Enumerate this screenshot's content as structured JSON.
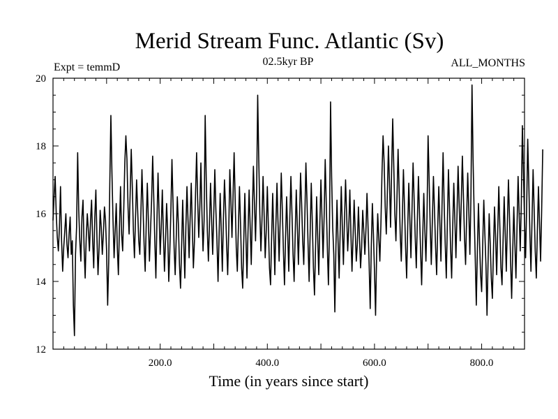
{
  "chart_data": {
    "type": "line",
    "title": "Merid Stream Func. Atlantic (Sv)",
    "subtitle_left": "Expt = temmD",
    "subtitle_center": "02.5kyr BP",
    "subtitle_right": "ALL_MONTHS",
    "xlabel": "Time (in years since start)",
    "ylabel": "",
    "xlim": [
      0,
      880
    ],
    "ylim": [
      12,
      20
    ],
    "x_ticks": [
      200,
      400,
      600,
      800
    ],
    "x_tick_labels": [
      "200.0",
      "400.0",
      "600.0",
      "800.0"
    ],
    "y_ticks": [
      12,
      14,
      16,
      18,
      20
    ],
    "y_tick_labels": [
      "12",
      "14",
      "16",
      "18",
      "20"
    ],
    "grid": false,
    "line_color": "#000000",
    "series": [
      {
        "x_start": 0,
        "x_step": 2,
        "values": [
          15.8,
          16.5,
          17.1,
          16.0,
          15.3,
          14.9,
          15.6,
          16.8,
          15.2,
          14.3,
          15.0,
          15.5,
          16.0,
          15.1,
          14.7,
          15.4,
          15.9,
          14.8,
          15.2,
          13.3,
          12.4,
          14.8,
          15.6,
          17.8,
          16.1,
          15.2,
          14.6,
          15.9,
          16.4,
          15.0,
          14.1,
          15.3,
          16.0,
          15.5,
          14.9,
          15.8,
          16.4,
          15.2,
          14.4,
          15.9,
          16.7,
          15.3,
          14.2,
          15.0,
          16.1,
          15.6,
          14.8,
          15.4,
          16.2,
          15.8,
          14.9,
          13.3,
          14.6,
          16.9,
          18.9,
          17.2,
          15.8,
          14.7,
          15.5,
          16.3,
          15.0,
          14.2,
          15.6,
          16.8,
          15.4,
          14.9,
          16.1,
          17.5,
          18.3,
          17.6,
          16.2,
          15.4,
          16.6,
          17.9,
          16.8,
          15.5,
          14.7,
          15.9,
          17.0,
          16.1,
          15.2,
          14.8,
          16.0,
          17.3,
          16.2,
          15.1,
          14.3,
          15.7,
          16.9,
          15.8,
          14.6,
          15.5,
          16.4,
          17.7,
          16.5,
          15.2,
          14.1,
          15.8,
          17.2,
          16.0,
          14.8,
          15.6,
          16.7,
          15.4,
          14.3,
          15.2,
          16.3,
          15.5,
          14.0,
          14.9,
          16.1,
          17.6,
          16.3,
          15.0,
          14.2,
          15.3,
          16.5,
          15.7,
          14.5,
          13.8,
          15.0,
          16.4,
          15.2,
          14.1,
          15.6,
          16.8,
          15.8,
          14.7,
          15.9,
          16.9,
          15.6,
          14.4,
          15.2,
          16.6,
          17.8,
          16.4,
          15.3,
          16.2,
          17.5,
          16.0,
          14.9,
          15.8,
          18.9,
          17.0,
          15.5,
          14.6,
          15.7,
          16.9,
          15.8,
          14.8,
          16.0,
          17.3,
          16.1,
          15.2,
          14.0,
          15.4,
          16.6,
          15.5,
          14.3,
          15.8,
          17.0,
          16.2,
          15.1,
          14.2,
          15.5,
          17.3,
          16.4,
          15.3,
          16.5,
          17.8,
          16.4,
          15.0,
          14.3,
          15.6,
          16.8,
          15.7,
          14.4,
          13.8,
          15.2,
          16.6,
          15.3,
          14.1,
          15.5,
          16.7,
          15.6,
          14.5,
          16.0,
          17.4,
          16.3,
          15.2,
          16.6,
          19.5,
          17.6,
          16.0,
          14.9,
          15.8,
          17.1,
          16.0,
          14.7,
          15.5,
          16.8,
          15.6,
          14.4,
          13.9,
          15.3,
          16.6,
          15.4,
          14.2,
          15.7,
          16.9,
          15.7,
          14.6,
          15.8,
          17.2,
          16.1,
          14.9,
          13.9,
          15.3,
          16.5,
          15.4,
          14.3,
          15.9,
          17.1,
          16.0,
          14.8,
          14.0,
          15.4,
          16.7,
          15.6,
          14.5,
          15.8,
          17.2,
          16.3,
          15.2,
          14.5,
          15.9,
          17.5,
          16.4,
          15.1,
          14.0,
          15.5,
          16.9,
          15.7,
          14.4,
          13.6,
          15.0,
          16.5,
          15.3,
          14.2,
          15.7,
          17.0,
          15.9,
          14.7,
          15.9,
          17.6,
          16.3,
          15.0,
          13.9,
          15.6,
          19.3,
          17.1,
          15.6,
          14.8,
          13.1,
          15.0,
          16.4,
          15.2,
          14.1,
          15.5,
          16.8,
          15.6,
          14.5,
          15.8,
          17.0,
          16.0,
          14.9,
          15.6,
          16.7,
          15.4,
          14.3,
          15.3,
          16.4,
          15.5,
          14.6,
          15.1,
          16.2,
          15.3,
          14.4,
          15.0,
          16.1,
          15.5,
          14.8,
          15.5,
          16.6,
          15.6,
          14.5,
          13.2,
          15.0,
          16.3,
          15.4,
          14.3,
          13.0,
          14.8,
          16.0,
          15.3,
          14.6,
          15.7,
          17.2,
          18.3,
          17.5,
          16.2,
          15.4,
          16.6,
          18.0,
          16.9,
          15.6,
          17.3,
          18.8,
          17.4,
          16.0,
          15.2,
          16.5,
          17.9,
          16.7,
          15.4,
          14.6,
          15.9,
          17.3,
          16.2,
          15.0,
          14.1,
          15.6,
          16.9,
          15.8,
          14.7,
          16.1,
          17.5,
          16.4,
          15.3,
          14.4,
          15.8,
          17.1,
          16.0,
          14.9,
          13.9,
          15.3,
          16.6,
          15.5,
          14.6,
          15.9,
          18.3,
          17.0,
          15.6,
          14.5,
          15.8,
          17.1,
          16.1,
          15.0,
          14.2,
          15.6,
          16.8,
          15.7,
          14.6,
          16.2,
          17.8,
          16.3,
          15.1,
          14.1,
          15.7,
          17.3,
          16.2,
          15.0,
          14.1,
          15.6,
          16.9,
          15.8,
          14.7,
          16.0,
          17.4,
          16.3,
          15.2,
          16.4,
          17.7,
          16.5,
          15.3,
          14.5,
          15.9,
          17.2,
          16.1,
          14.8,
          16.5,
          19.8,
          17.6,
          16.0,
          14.7,
          13.3,
          14.9,
          16.3,
          15.2,
          14.2,
          13.7,
          15.1,
          16.4,
          15.4,
          14.5,
          13.0,
          14.6,
          16.0,
          15.1,
          14.1,
          13.5,
          14.9,
          16.2,
          15.3,
          14.2,
          15.5,
          16.8,
          15.6,
          14.4,
          13.9,
          15.2,
          16.5,
          15.4,
          14.3,
          15.7,
          17.0,
          15.9,
          14.6,
          13.5,
          14.9,
          16.2,
          15.1,
          14.1,
          15.6,
          17.1,
          16.0,
          14.9,
          16.3,
          18.6,
          17.2,
          15.8,
          14.7,
          16.2,
          18.2,
          16.9,
          15.4,
          14.3,
          15.8,
          17.3,
          16.1,
          14.9,
          14.1,
          15.5,
          16.8,
          15.7,
          14.6,
          16.1,
          17.9
        ]
      }
    ]
  }
}
